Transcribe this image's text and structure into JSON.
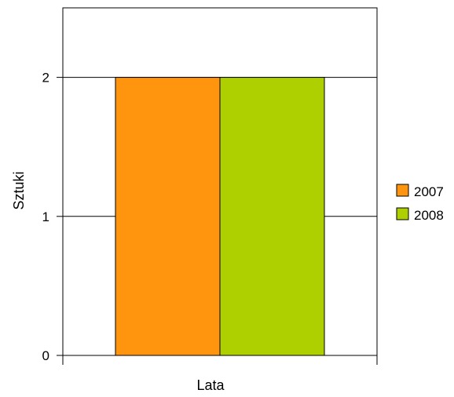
{
  "chart_data": {
    "type": "bar",
    "title": "",
    "xlabel": "Lata",
    "ylabel": "Sztuki",
    "ylim": [
      0,
      2.5
    ],
    "yticks": [
      0,
      1,
      2
    ],
    "categories": [
      ""
    ],
    "series": [
      {
        "name": "2007",
        "values": [
          2
        ],
        "color": "#ff950e"
      },
      {
        "name": "2008",
        "values": [
          2
        ],
        "color": "#aecf00"
      }
    ],
    "grid": true,
    "legend_position": "right"
  }
}
